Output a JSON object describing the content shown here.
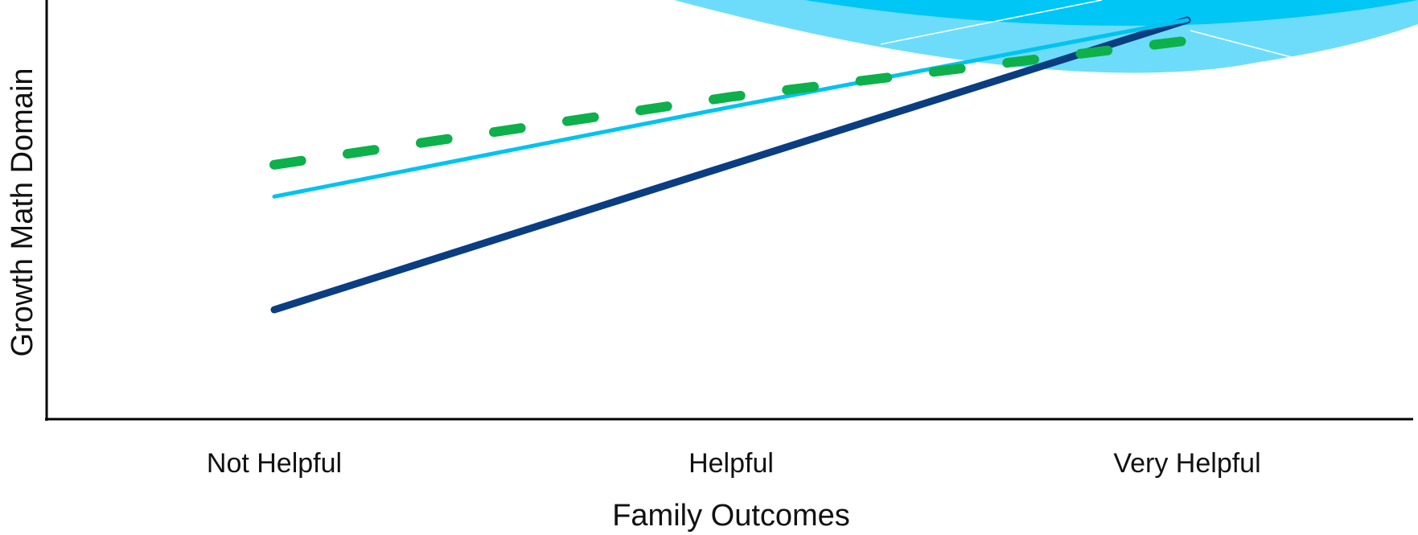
{
  "chart_data": {
    "type": "line",
    "x_label": "Family Outcomes",
    "y_label": "Growth Math Domain",
    "categories": [
      "Not Helpful",
      "Helpful",
      "Very Helpful"
    ],
    "ylim": [
      0,
      100
    ],
    "series": [
      {
        "color": "#0a3d82",
        "values": [
          26.1,
          60.7,
          95.2
        ]
      },
      {
        "color": "#00c3f0",
        "values": [
          53.1,
          74.5,
          95.2
        ]
      },
      {
        "color": "#0db04b",
        "values": [
          60.7,
          76.9,
          90.3
        ],
        "dashed": true
      }
    ]
  }
}
